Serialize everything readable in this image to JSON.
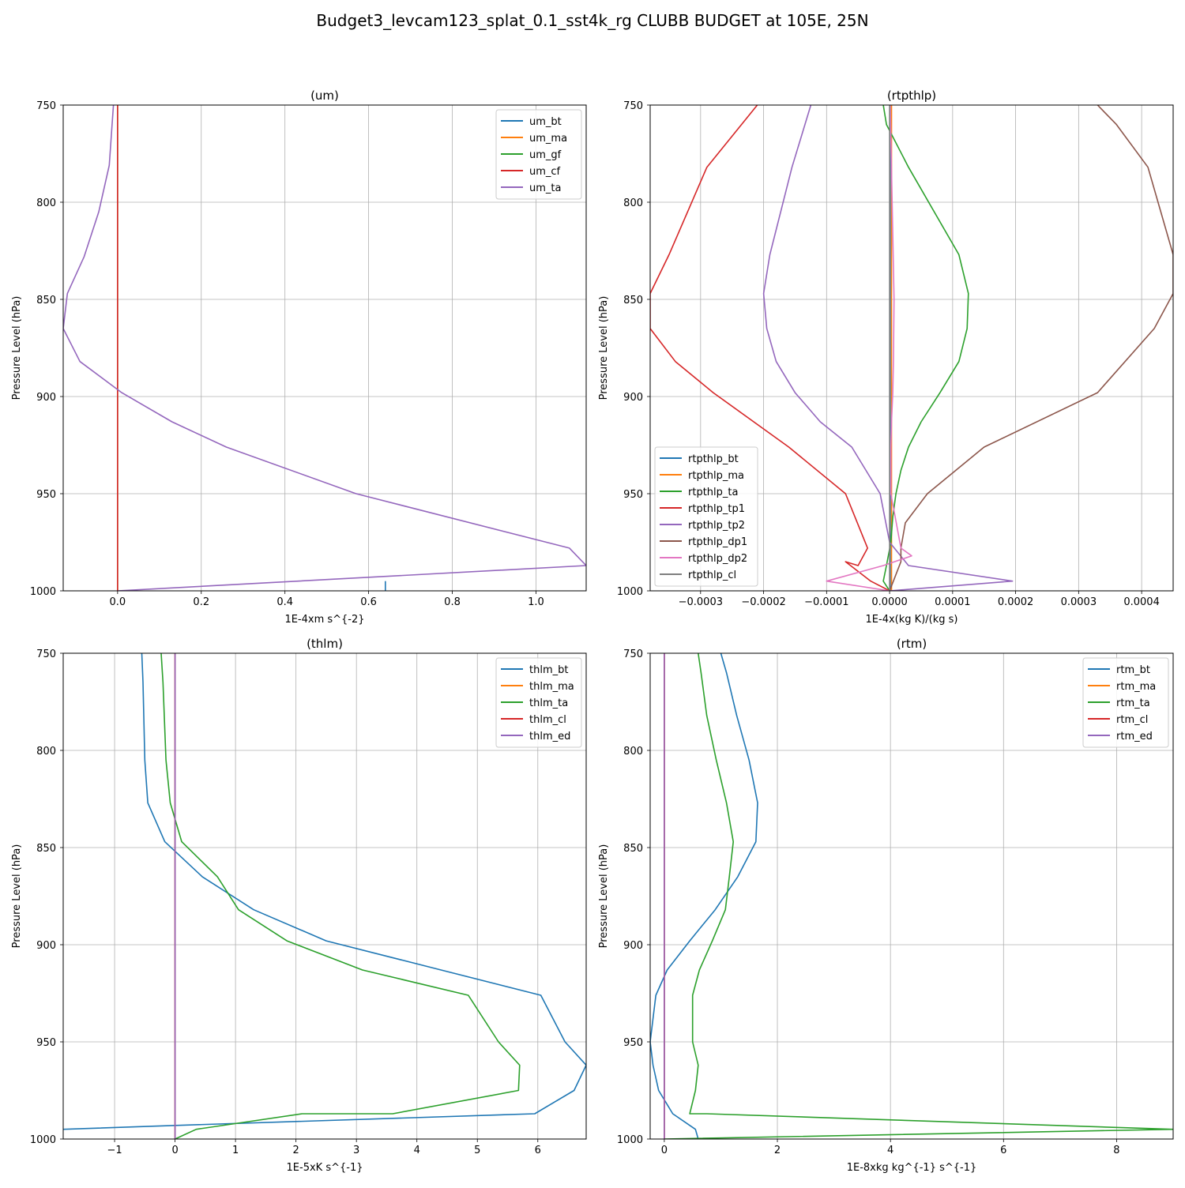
{
  "figure": {
    "suptitle": "Budget3_levcam123_splat_0.1_sst4k_rg CLUBB BUDGET at 105E, 25N",
    "ylabel": "Pressure Level (hPa)"
  },
  "colors": {
    "blue": "#1f77b4",
    "orange": "#ff7f0e",
    "green": "#2ca02c",
    "red": "#d62728",
    "purple": "#9467bd",
    "brown": "#8c564b",
    "pink": "#e377c2",
    "gray": "#7f7f7f"
  },
  "chart_data": [
    {
      "type": "line",
      "title": "(um)",
      "xlabel": "1E-4xm s^{-2}",
      "ylabel": "Pressure Level (hPa)",
      "xlim": [
        -0.13,
        1.12
      ],
      "ylim": [
        1000,
        750
      ],
      "xticks": [
        0.0,
        0.2,
        0.4,
        0.6,
        0.8,
        1.0
      ],
      "xtick_labels": [
        "0.0",
        "0.2",
        "0.4",
        "0.6",
        "0.8",
        "1.0"
      ],
      "yticks": [
        750,
        800,
        850,
        900,
        950,
        1000
      ],
      "ytick_labels": [
        "750",
        "800",
        "850",
        "900",
        "950",
        "1000"
      ],
      "grid": true,
      "legend_loc": "upper-right",
      "series": [
        {
          "name": "um_bt",
          "color": "#1f77b4",
          "x": [
            0.64,
            0.64
          ],
          "y": [
            1000,
            995
          ]
        },
        {
          "name": "um_ma",
          "color": "#ff7f0e",
          "x": [
            0,
            0
          ],
          "y": [
            750,
            1000
          ]
        },
        {
          "name": "um_gf",
          "color": "#2ca02c",
          "x": [
            0,
            0
          ],
          "y": [
            750,
            1000
          ]
        },
        {
          "name": "um_cf",
          "color": "#d62728",
          "x": [
            0,
            0
          ],
          "y": [
            750,
            1000
          ]
        },
        {
          "name": "um_ta",
          "color": "#9467bd",
          "x": [
            -0.01,
            -0.02,
            -0.045,
            -0.08,
            -0.12,
            -0.13,
            -0.09,
            0.01,
            0.13,
            0.26,
            0.57,
            1.08,
            1.12,
            0.0
          ],
          "y": [
            750,
            781,
            805,
            828,
            847,
            865,
            882,
            898,
            913,
            926,
            950,
            978,
            987,
            1000
          ]
        }
      ]
    },
    {
      "type": "line",
      "title": "(rtpthlp)",
      "xlabel": "1E-4x(kg K)/(kg s)",
      "ylabel": "Pressure Level (hPa)",
      "xlim": [
        -0.00038,
        0.00045
      ],
      "ylim": [
        1000,
        750
      ],
      "xticks": [
        -0.0003,
        -0.0002,
        -0.0001,
        0.0,
        0.0001,
        0.0002,
        0.0003,
        0.0004
      ],
      "xtick_labels": [
        "−0.0003",
        "−0.0002",
        "−0.0001",
        "0.0000",
        "0.0001",
        "0.0002",
        "0.0003",
        "0.0004"
      ],
      "yticks": [
        750,
        800,
        850,
        900,
        950,
        1000
      ],
      "ytick_labels": [
        "750",
        "800",
        "850",
        "900",
        "950",
        "1000"
      ],
      "grid": true,
      "legend_loc": "lower-left",
      "series": [
        {
          "name": "rtpthlp_bt",
          "color": "#1f77b4",
          "x": [
            1e-06,
            1e-06
          ],
          "y": [
            750,
            1000
          ]
        },
        {
          "name": "rtpthlp_ma",
          "color": "#ff7f0e",
          "x": [
            3e-06,
            3e-06
          ],
          "y": [
            750,
            1000
          ]
        },
        {
          "name": "rtpthlp_ta",
          "color": "#2ca02c",
          "x": [
            -1e-05,
            -5e-06,
            3e-05,
            0.00011,
            0.000125,
            0.000123,
            0.00011,
            8e-05,
            5e-05,
            3e-05,
            1.8e-05,
            1e-05,
            5e-06,
            2e-06,
            -5e-06,
            -1e-05,
            0.0
          ],
          "y": [
            750,
            760,
            782,
            827,
            847,
            865,
            882,
            898,
            913,
            926,
            938,
            950,
            962,
            975,
            987,
            995,
            1000
          ]
        },
        {
          "name": "rtpthlp_tp1",
          "color": "#d62728",
          "x": [
            -0.00021,
            -0.00029,
            -0.00035,
            -0.00038,
            -0.00038,
            -0.00034,
            -0.00028,
            -0.00016,
            -7e-05,
            -3.5e-05,
            -5e-05,
            -7e-05,
            -5e-05,
            -3e-05,
            0.0
          ],
          "y": [
            750,
            782,
            827,
            847,
            865,
            882,
            898,
            926,
            950,
            978,
            987,
            985,
            990,
            995,
            1000
          ]
        },
        {
          "name": "rtpthlp_tp2",
          "color": "#9467bd",
          "x": [
            -0.000125,
            -0.000155,
            -0.00019,
            -0.0002,
            -0.000195,
            -0.00018,
            -0.00015,
            -0.00011,
            -6e-05,
            -1.5e-05,
            0.0,
            3e-05,
            0.000195,
            0.0
          ],
          "y": [
            750,
            782,
            827,
            847,
            865,
            882,
            898,
            913,
            926,
            950,
            975,
            987,
            995,
            1000
          ]
        },
        {
          "name": "rtpthlp_dp1",
          "color": "#8c564b",
          "x": [
            0.00033,
            0.00036,
            0.00041,
            0.00045,
            0.00045,
            0.00042,
            0.00033,
            0.00015,
            6e-05,
            2.5e-05,
            1.8e-05,
            1.8e-05,
            0.0
          ],
          "y": [
            750,
            760,
            782,
            827,
            847,
            865,
            898,
            926,
            950,
            965,
            978,
            985,
            1000
          ]
        },
        {
          "name": "rtpthlp_dp2",
          "color": "#e377c2",
          "x": [
            1e-06,
            4e-06,
            7e-06,
            6e-06,
            5e-06,
            3e-06,
            2e-06,
            2e-06,
            1.8e-05,
            3.5e-05,
            -1e-05,
            -0.0001,
            0.0
          ],
          "y": [
            750,
            800,
            850,
            882,
            898,
            913,
            926,
            950,
            978,
            982,
            987,
            995,
            1000
          ]
        },
        {
          "name": "rtpthlp_cl",
          "color": "#7f7f7f",
          "x": [
            0.0,
            0.0
          ],
          "y": [
            750,
            1000
          ]
        }
      ]
    },
    {
      "type": "line",
      "title": "(thlm)",
      "xlabel": "1E-5xK s^{-1}",
      "ylabel": "Pressure Level (hPa)",
      "xlim": [
        -1.85,
        6.8
      ],
      "ylim": [
        1000,
        750
      ],
      "xticks": [
        -1,
        0,
        1,
        2,
        3,
        4,
        5,
        6
      ],
      "xtick_labels": [
        "−1",
        "0",
        "1",
        "2",
        "3",
        "4",
        "5",
        "6"
      ],
      "yticks": [
        750,
        800,
        850,
        900,
        950,
        1000
      ],
      "ytick_labels": [
        "750",
        "800",
        "850",
        "900",
        "950",
        "1000"
      ],
      "grid": true,
      "legend_loc": "upper-right",
      "series": [
        {
          "name": "thlm_bt",
          "color": "#1f77b4",
          "x": [
            -0.55,
            -0.53,
            -0.5,
            -0.45,
            -0.17,
            0.45,
            1.3,
            2.5,
            4.4,
            6.05,
            6.45,
            6.8,
            6.6,
            5.95,
            0.0,
            -1.85
          ],
          "y": [
            750,
            765,
            805,
            827,
            847,
            865,
            882,
            898,
            913,
            926,
            950,
            962,
            975,
            987,
            993,
            995
          ]
        },
        {
          "name": "thlm_ma",
          "color": "#ff7f0e",
          "x": [
            0,
            0
          ],
          "y": [
            750,
            1000
          ]
        },
        {
          "name": "thlm_ta",
          "color": "#2ca02c",
          "x": [
            -0.23,
            -0.2,
            -0.15,
            -0.08,
            0.11,
            0.7,
            1.05,
            1.85,
            3.1,
            4.85,
            5.35,
            5.7,
            5.68,
            3.6,
            2.1,
            0.35,
            0.0
          ],
          "y": [
            750,
            765,
            805,
            827,
            847,
            865,
            882,
            898,
            913,
            926,
            950,
            962,
            975,
            987,
            987,
            995,
            1000
          ]
        },
        {
          "name": "thlm_cl",
          "color": "#d62728",
          "x": [
            0,
            0
          ],
          "y": [
            750,
            1000
          ]
        },
        {
          "name": "thlm_ed",
          "color": "#9467bd",
          "x": [
            0,
            0
          ],
          "y": [
            750,
            1000
          ]
        }
      ]
    },
    {
      "type": "line",
      "title": "(rtm)",
      "xlabel": "1E-8xkg kg^{-1} s^{-1}",
      "ylabel": "Pressure Level (hPa)",
      "xlim": [
        -0.25,
        9.0
      ],
      "ylim": [
        1000,
        750
      ],
      "xticks": [
        0,
        2,
        4,
        6,
        8
      ],
      "xtick_labels": [
        "0",
        "2",
        "4",
        "6",
        "8"
      ],
      "yticks": [
        750,
        800,
        850,
        900,
        950,
        1000
      ],
      "ytick_labels": [
        "750",
        "800",
        "850",
        "900",
        "950",
        "1000"
      ],
      "grid": true,
      "legend_loc": "upper-right",
      "series": [
        {
          "name": "rtm_bt",
          "color": "#1f77b4",
          "x": [
            1.0,
            1.1,
            1.28,
            1.5,
            1.65,
            1.62,
            1.3,
            0.9,
            0.45,
            0.05,
            -0.15,
            -0.25,
            -0.2,
            -0.1,
            0.15,
            0.55,
            0.6,
            0.6
          ],
          "y": [
            750,
            760,
            782,
            805,
            827,
            847,
            865,
            882,
            898,
            913,
            926,
            950,
            962,
            975,
            987,
            995,
            1000,
            1000
          ]
        },
        {
          "name": "rtm_ma",
          "color": "#ff7f0e",
          "x": [
            0,
            0
          ],
          "y": [
            750,
            1000
          ]
        },
        {
          "name": "rtm_ta",
          "color": "#2ca02c",
          "x": [
            0.6,
            0.65,
            0.75,
            0.92,
            1.1,
            1.22,
            1.15,
            1.08,
            0.85,
            0.62,
            0.5,
            0.5,
            0.6,
            0.55,
            0.45,
            0.75,
            9.0,
            0.0
          ],
          "y": [
            750,
            760,
            782,
            805,
            827,
            847,
            865,
            882,
            898,
            913,
            926,
            950,
            962,
            975,
            987,
            987,
            995,
            1000
          ]
        },
        {
          "name": "rtm_cl",
          "color": "#d62728",
          "x": [
            0,
            0
          ],
          "y": [
            750,
            1000
          ]
        },
        {
          "name": "rtm_ed",
          "color": "#9467bd",
          "x": [
            0,
            0
          ],
          "y": [
            750,
            1000
          ]
        }
      ]
    }
  ]
}
